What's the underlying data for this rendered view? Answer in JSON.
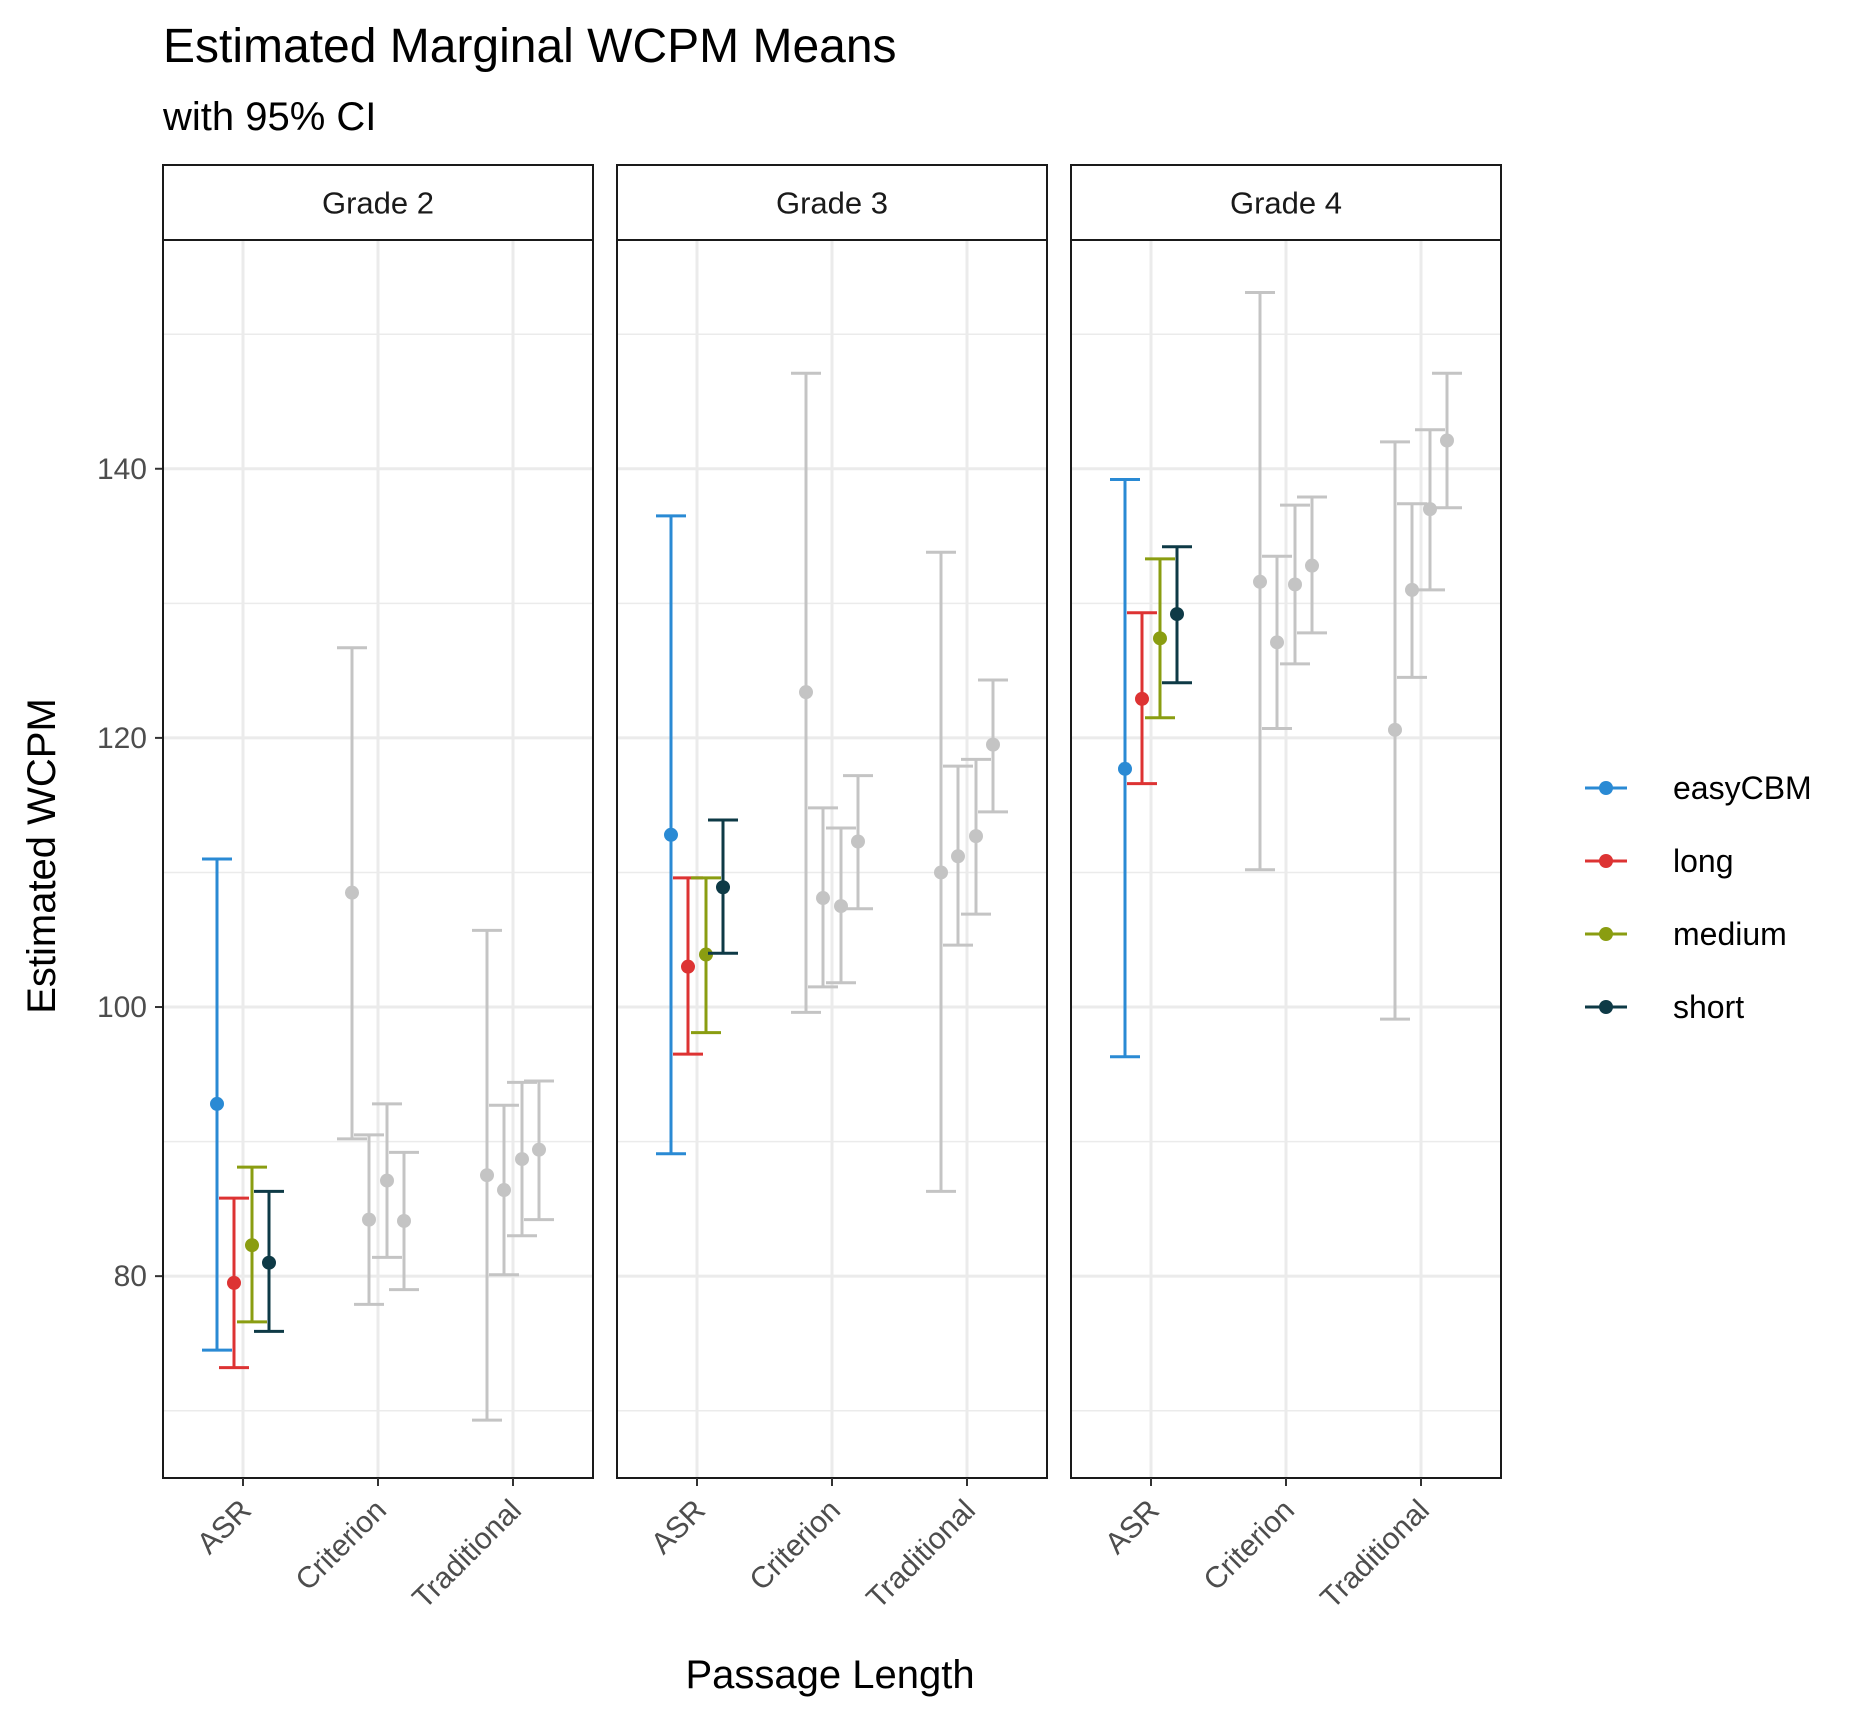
{
  "chart_data": {
    "type": "scatter",
    "title": "Estimated Marginal WCPM Means",
    "subtitle": "with 95% CI",
    "xlabel": "Passage Length",
    "ylabel": "Estimated WCPM",
    "ylim": [
      65,
      157
    ],
    "yticks": [
      80,
      100,
      120,
      140
    ],
    "grid": true,
    "legend_position": "right",
    "categories": [
      "ASR",
      "Criterion",
      "Traditional"
    ],
    "series": [
      {
        "name": "easyCBM",
        "color": "#2A8AD4"
      },
      {
        "name": "long",
        "color": "#DD3333"
      },
      {
        "name": "medium",
        "color": "#8A9D11"
      },
      {
        "name": "short",
        "color": "#0E3A46"
      }
    ],
    "muted_color": "#C4C4C4",
    "highlight_category": "ASR",
    "panels": [
      {
        "label": "Grade 2",
        "points": {
          "ASR": [
            {
              "series": "easyCBM",
              "mean": 92.8,
              "lower": 74.5,
              "upper": 111.0
            },
            {
              "series": "long",
              "mean": 79.5,
              "lower": 73.2,
              "upper": 85.8
            },
            {
              "series": "medium",
              "mean": 82.3,
              "lower": 76.6,
              "upper": 88.1
            },
            {
              "series": "short",
              "mean": 81.0,
              "lower": 75.9,
              "upper": 86.3
            }
          ],
          "Criterion": [
            {
              "series": "easyCBM",
              "mean": 108.5,
              "lower": 90.2,
              "upper": 126.7
            },
            {
              "series": "long",
              "mean": 84.2,
              "lower": 77.9,
              "upper": 90.5
            },
            {
              "series": "medium",
              "mean": 87.1,
              "lower": 81.4,
              "upper": 92.8
            },
            {
              "series": "short",
              "mean": 84.1,
              "lower": 79.0,
              "upper": 89.2
            }
          ],
          "Traditional": [
            {
              "series": "easyCBM",
              "mean": 87.5,
              "lower": 69.3,
              "upper": 105.7
            },
            {
              "series": "long",
              "mean": 86.4,
              "lower": 80.1,
              "upper": 92.7
            },
            {
              "series": "medium",
              "mean": 88.7,
              "lower": 83.0,
              "upper": 94.4
            },
            {
              "series": "short",
              "mean": 89.4,
              "lower": 84.2,
              "upper": 94.5
            }
          ]
        }
      },
      {
        "label": "Grade 3",
        "points": {
          "ASR": [
            {
              "series": "easyCBM",
              "mean": 112.8,
              "lower": 89.1,
              "upper": 136.5
            },
            {
              "series": "long",
              "mean": 103.0,
              "lower": 96.5,
              "upper": 109.6
            },
            {
              "series": "medium",
              "mean": 103.9,
              "lower": 98.1,
              "upper": 109.6
            },
            {
              "series": "short",
              "mean": 108.9,
              "lower": 104.0,
              "upper": 113.9
            }
          ],
          "Criterion": [
            {
              "series": "easyCBM",
              "mean": 123.4,
              "lower": 99.6,
              "upper": 147.1
            },
            {
              "series": "long",
              "mean": 108.1,
              "lower": 101.5,
              "upper": 114.8
            },
            {
              "series": "medium",
              "mean": 107.5,
              "lower": 101.8,
              "upper": 113.3
            },
            {
              "series": "short",
              "mean": 112.3,
              "lower": 107.3,
              "upper": 117.2
            }
          ],
          "Traditional": [
            {
              "series": "easyCBM",
              "mean": 110.0,
              "lower": 86.3,
              "upper": 133.8
            },
            {
              "series": "long",
              "mean": 111.2,
              "lower": 104.6,
              "upper": 117.9
            },
            {
              "series": "medium",
              "mean": 112.7,
              "lower": 106.9,
              "upper": 118.4
            },
            {
              "series": "short",
              "mean": 119.5,
              "lower": 114.5,
              "upper": 124.3
            }
          ]
        }
      },
      {
        "label": "Grade 4",
        "points": {
          "ASR": [
            {
              "series": "easyCBM",
              "mean": 117.7,
              "lower": 96.3,
              "upper": 139.2
            },
            {
              "series": "long",
              "mean": 122.9,
              "lower": 116.6,
              "upper": 129.3
            },
            {
              "series": "medium",
              "mean": 127.4,
              "lower": 121.5,
              "upper": 133.3
            },
            {
              "series": "short",
              "mean": 129.2,
              "lower": 124.1,
              "upper": 134.2
            }
          ],
          "Criterion": [
            {
              "series": "easyCBM",
              "mean": 131.6,
              "lower": 110.2,
              "upper": 153.1
            },
            {
              "series": "long",
              "mean": 127.1,
              "lower": 120.7,
              "upper": 133.5
            },
            {
              "series": "medium",
              "mean": 131.4,
              "lower": 125.5,
              "upper": 137.3
            },
            {
              "series": "short",
              "mean": 132.8,
              "lower": 127.8,
              "upper": 137.9
            }
          ],
          "Traditional": [
            {
              "series": "easyCBM",
              "mean": 120.6,
              "lower": 99.1,
              "upper": 142.0
            },
            {
              "series": "long",
              "mean": 131.0,
              "lower": 124.5,
              "upper": 137.4
            },
            {
              "series": "medium",
              "mean": 137.0,
              "lower": 131.0,
              "upper": 142.9
            },
            {
              "series": "short",
              "mean": 142.1,
              "lower": 137.1,
              "upper": 147.1
            }
          ]
        }
      }
    ]
  }
}
